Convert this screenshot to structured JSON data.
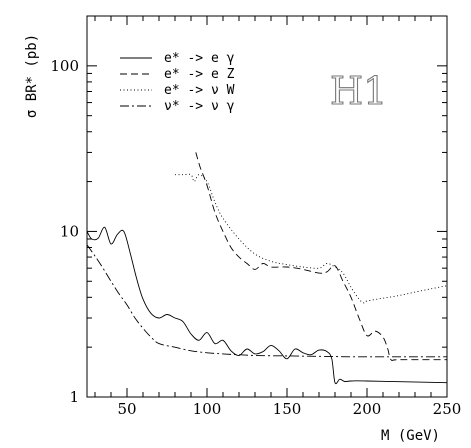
{
  "chart_data": {
    "type": "line",
    "title": "",
    "experiment_label": "H1",
    "xlabel": "M (GeV)",
    "ylabel": "σ BR* (pb)",
    "xlim": [
      25,
      250
    ],
    "ylim": [
      1,
      200
    ],
    "yscale": "log",
    "x_ticks": [
      50,
      100,
      150,
      200,
      250
    ],
    "x_tick_labels": [
      "50",
      "100",
      "150",
      "200",
      "250"
    ],
    "y_ticks": [
      1,
      10,
      100
    ],
    "y_tick_labels": [
      "1",
      "10",
      "100"
    ],
    "legend_position": "top-left",
    "series": [
      {
        "name": "e* -> e γ",
        "style": "solid",
        "x": [
          25,
          28,
          32,
          36,
          40,
          44,
          48,
          52,
          56,
          60,
          65,
          70,
          75,
          80,
          85,
          90,
          95,
          100,
          105,
          110,
          115,
          120,
          125,
          130,
          135,
          140,
          145,
          150,
          155,
          160,
          165,
          170,
          175,
          178,
          180,
          183,
          186,
          190,
          200,
          250
        ],
        "y": [
          10.0,
          9.0,
          9.1,
          10.6,
          8.4,
          9.6,
          10.0,
          7.4,
          5.2,
          3.9,
          3.2,
          3.0,
          3.15,
          3.0,
          2.85,
          2.4,
          2.2,
          2.45,
          2.1,
          2.2,
          1.9,
          1.78,
          1.95,
          1.82,
          1.88,
          2.05,
          1.9,
          1.7,
          1.95,
          1.85,
          1.8,
          1.92,
          1.88,
          1.7,
          1.22,
          1.28,
          1.24,
          1.25,
          1.25,
          1.22
        ]
      },
      {
        "name": "e* -> e Z",
        "style": "dashed",
        "x": [
          93,
          96,
          100,
          105,
          110,
          115,
          120,
          125,
          130,
          135,
          140,
          150,
          160,
          170,
          175,
          180,
          185,
          190,
          195,
          200,
          205,
          210,
          213,
          215,
          220,
          250
        ],
        "y": [
          30,
          24,
          19,
          13,
          10,
          8.0,
          7.0,
          6.4,
          5.9,
          6.4,
          6.1,
          6.1,
          5.9,
          5.6,
          5.7,
          6.2,
          5.0,
          4.0,
          3.0,
          2.35,
          2.5,
          2.3,
          1.95,
          1.68,
          1.68,
          1.68
        ]
      },
      {
        "name": "e* -> ν W",
        "style": "dotted",
        "x": [
          80,
          85,
          90,
          92,
          95,
          100,
          105,
          110,
          120,
          130,
          140,
          150,
          160,
          170,
          175,
          180,
          185,
          190,
          195,
          198,
          200,
          210,
          220,
          230,
          240,
          250
        ],
        "y": [
          22,
          22,
          22,
          20,
          22,
          20,
          15,
          12,
          9.0,
          7.3,
          6.6,
          6.3,
          6.1,
          6.0,
          6.4,
          6.1,
          5.6,
          4.6,
          3.9,
          3.7,
          3.8,
          3.95,
          4.1,
          4.3,
          4.5,
          4.7
        ]
      },
      {
        "name": "ν* -> ν γ",
        "style": "dash-dot",
        "x": [
          25,
          30,
          35,
          40,
          45,
          50,
          55,
          60,
          65,
          70,
          80,
          90,
          100,
          110,
          120,
          130,
          150,
          170,
          190,
          210,
          230,
          250
        ],
        "y": [
          8.3,
          7.1,
          6.0,
          5.0,
          4.2,
          3.6,
          3.0,
          2.6,
          2.3,
          2.1,
          2.0,
          1.9,
          1.85,
          1.82,
          1.8,
          1.78,
          1.77,
          1.76,
          1.75,
          1.75,
          1.75,
          1.75
        ]
      }
    ]
  }
}
